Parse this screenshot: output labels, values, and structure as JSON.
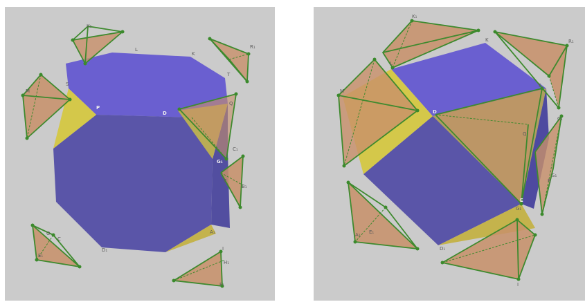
{
  "colors": {
    "background": "#cbcbcb",
    "polyhedron_top": "#6a5fd0",
    "polyhedron_front": "#5a55a8",
    "polyhedron_side": "#524ea0",
    "triangle_face": "#d4c84a",
    "tetrahedron_fill": "#c8906a",
    "edge_green": "#3e8a2e"
  },
  "left_panel": {
    "labels": {
      "k1": "K₁",
      "r1": "R₁",
      "l": "L",
      "k": "K",
      "t": "T",
      "m": "M",
      "s": "S",
      "p": "P",
      "d": "D",
      "q": "Q",
      "c1": "C₁",
      "g1": "G₁",
      "b1": "B₁",
      "e": "E",
      "c": "C",
      "d1": "D₁",
      "a1": "A₁",
      "h1": "H₁",
      "e1": "E₁",
      "f1": "F₁",
      "o": "O",
      "i": "I"
    }
  },
  "right_panel": {
    "labels": {
      "k1": "K₁",
      "r1": "R₁",
      "l": "L",
      "k": "K",
      "t": "T",
      "m": "M",
      "d": "D",
      "q": "Q",
      "s1": "S₁",
      "c1": "C₁",
      "r": "R",
      "e": "E",
      "g1": "G₁",
      "d1": "D₁",
      "a1": "A₁",
      "e1": "E₁",
      "i": "I"
    }
  }
}
